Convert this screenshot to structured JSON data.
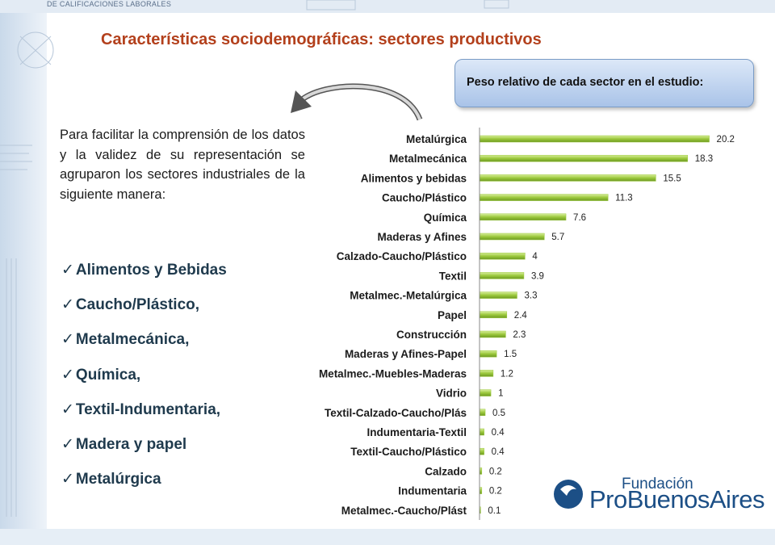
{
  "header": {
    "subtitle": "DE CALIFICACIONES LABORALES"
  },
  "slide_title": "Características sociodemográficas: sectores productivos",
  "callout": "Peso relativo de cada sector en el estudio:",
  "paragraph": "Para facilitar la comprensión de los datos y la validez de su representación se agruparon los sectores industriales de la siguiente manera:",
  "checklist": [
    "Alimentos y Bebidas",
    "Caucho/Plástico,",
    "Metalmecánica,",
    "Química,",
    "Textil-Indumentaria,",
    "Madera y papel",
    "Metalúrgica"
  ],
  "logo": {
    "line1": "Fundación",
    "line2": "ProBuenosAires"
  },
  "chart_data": {
    "type": "hbar",
    "categories": [
      "Metalúrgica",
      "Metalmecánica",
      "Alimentos y bebidas",
      "Caucho/Plástico",
      "Química",
      "Maderas y Afines",
      "Calzado-Caucho/Plástico",
      "Textil",
      "Metalmec.-Metalúrgica",
      "Papel",
      "Construcción",
      "Maderas y Afines-Papel",
      "Metalmec.-Muebles-Maderas",
      "Vidrio",
      "Textil-Calzado-Caucho/Plás",
      "Indumentaria-Textil",
      "Textil-Caucho/Plástico",
      "Calzado",
      "Indumentaria",
      "Metalmec.-Caucho/Plást"
    ],
    "values": [
      20.2,
      18.3,
      15.5,
      11.3,
      7.6,
      5.7,
      4,
      3.9,
      3.3,
      2.4,
      2.3,
      1.5,
      1.2,
      1,
      0.5,
      0.4,
      0.4,
      0.2,
      0.2,
      0.1
    ],
    "color": "#9bc83c",
    "xlim": [
      0,
      23
    ]
  }
}
